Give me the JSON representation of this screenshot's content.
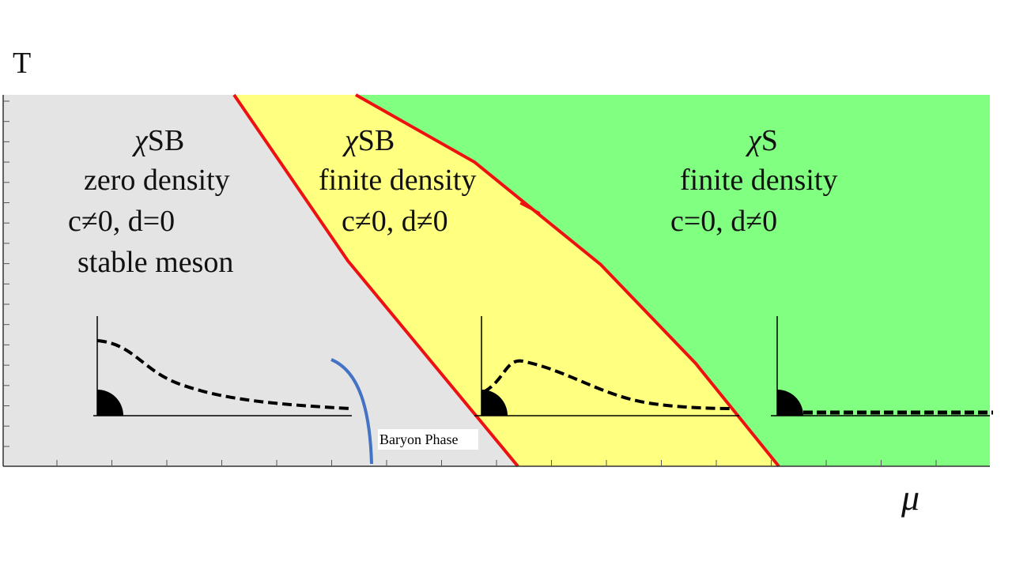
{
  "axes": {
    "y_label": "T",
    "x_label": "μ"
  },
  "regions": [
    {
      "symbol": "χ",
      "phase": "SB",
      "density": "zero density",
      "condition": "c≠0, d=0",
      "note": "stable meson"
    },
    {
      "symbol": "χ",
      "phase": "SB",
      "density": "finite density",
      "condition": "c≠0, d≠0"
    },
    {
      "symbol": "χ",
      "phase": "S",
      "density": "finite density",
      "condition": "c=0, d≠0"
    }
  ],
  "annotation": "Baryon Phase"
}
